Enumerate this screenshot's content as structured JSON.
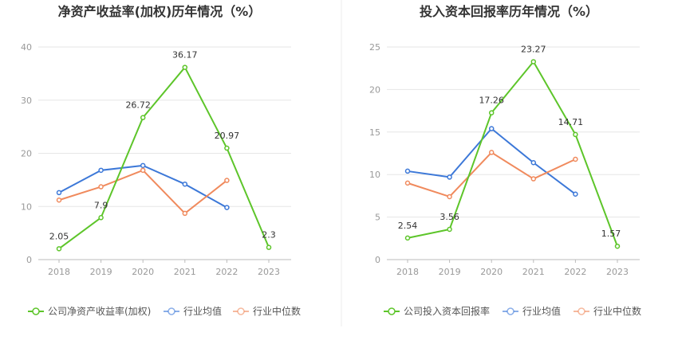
{
  "chart_data": [
    {
      "type": "line",
      "title": "净资产收益率(加权)历年情况（%）",
      "categories": [
        "2018",
        "2019",
        "2020",
        "2021",
        "2022",
        "2023"
      ],
      "y_ticks": [
        "0",
        "10",
        "20",
        "30",
        "40"
      ],
      "ylim": [
        0,
        40
      ],
      "grid": true,
      "legend_position": "bottom",
      "series": [
        {
          "name": "公司净资产收益率(加权)",
          "color": "#5dc52a",
          "values": [
            2.05,
            7.9,
            26.72,
            36.17,
            20.97,
            2.3
          ],
          "labels": [
            "2.05",
            "7.9",
            "26.72",
            "36.17",
            "20.97",
            "2.3"
          ]
        },
        {
          "name": "行业均值",
          "color": "#3c78d8",
          "values": [
            12.6,
            16.8,
            17.7,
            14.2,
            9.8,
            null
          ]
        },
        {
          "name": "行业中位数",
          "color": "#f08a5d",
          "values": [
            11.2,
            13.7,
            16.8,
            8.7,
            14.9,
            null
          ]
        }
      ]
    },
    {
      "type": "line",
      "title": "投入资本回报率历年情况（%）",
      "categories": [
        "2018",
        "2019",
        "2020",
        "2021",
        "2022",
        "2023"
      ],
      "y_ticks": [
        "0",
        "5",
        "10",
        "15",
        "20",
        "25"
      ],
      "ylim": [
        0,
        25
      ],
      "grid": true,
      "legend_position": "bottom",
      "series": [
        {
          "name": "公司投入资本回报率",
          "color": "#5dc52a",
          "values": [
            2.54,
            3.56,
            17.26,
            23.27,
            14.71,
            1.57
          ],
          "labels": [
            "2.54",
            "3.56",
            "17.26",
            "23.27",
            "14.71",
            "1.57"
          ]
        },
        {
          "name": "行业均值",
          "color": "#3c78d8",
          "values": [
            10.4,
            9.7,
            15.4,
            11.4,
            7.7,
            null
          ]
        },
        {
          "name": "行业中位数",
          "color": "#f08a5d",
          "values": [
            9.0,
            7.4,
            12.6,
            9.5,
            11.8,
            null
          ]
        }
      ]
    }
  ]
}
